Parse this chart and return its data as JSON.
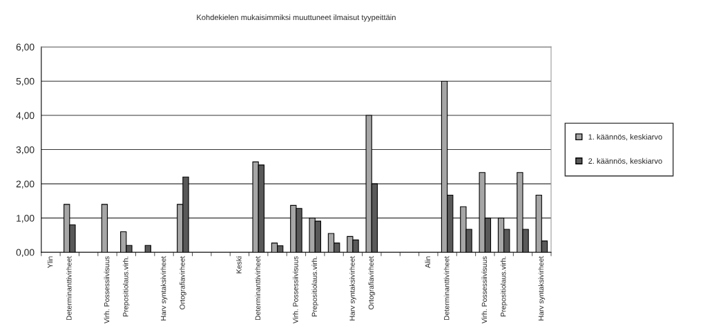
{
  "chart_data": {
    "type": "bar",
    "title": "Kohdekielen mukaisimmiksi muuttuneet ilmaisut tyypeittäin",
    "categories": [
      "Ylin",
      "Determinanttivirheet",
      null,
      "Virh. Possessiivisuus",
      "Prepositiolaus.virh.",
      null,
      "Harv syntaksivirheet",
      "Ortografiavirheet",
      null,
      null,
      "Keski",
      "Determinanttivirheet",
      null,
      "Virh. Possessiivisuus",
      "Prepositiolaus.virh.",
      null,
      "Harv syntaksivirheet",
      "Ortografiavirheet",
      null,
      null,
      "Alin",
      "Determinanttivirheet",
      null,
      "Virh. Possessiivisuus",
      "Prepositiolaus.virh.",
      null,
      "Harv syntaksivirheet"
    ],
    "series": [
      {
        "name": "1. käännös, keskiarvo",
        "color": "#a6a6a6",
        "values": [
          null,
          1.4,
          null,
          1.4,
          0.6,
          null,
          null,
          1.4,
          null,
          null,
          null,
          2.64,
          0.27,
          1.37,
          1.0,
          0.55,
          0.46,
          4.0,
          null,
          null,
          null,
          5.0,
          1.33,
          2.33,
          1.0,
          2.33,
          1.67
        ]
      },
      {
        "name": "2. käännös, keskiarvo",
        "color": "#595959",
        "values": [
          null,
          0.8,
          null,
          null,
          0.2,
          0.2,
          null,
          2.2,
          null,
          null,
          null,
          2.55,
          0.19,
          1.28,
          0.91,
          0.27,
          0.36,
          2.0,
          null,
          null,
          null,
          1.67,
          0.67,
          1.0,
          0.67,
          0.67,
          0.33
        ]
      }
    ],
    "ylim": [
      0,
      6
    ],
    "yticks": [
      {
        "value": 0,
        "label": "0,00"
      },
      {
        "value": 1,
        "label": "1,00"
      },
      {
        "value": 2,
        "label": "2,00"
      },
      {
        "value": 3,
        "label": "3,00"
      },
      {
        "value": 4,
        "label": "4,00"
      },
      {
        "value": 5,
        "label": "5,00"
      },
      {
        "value": 6,
        "label": "6,00"
      }
    ],
    "grid": "y",
    "legend": "right"
  }
}
